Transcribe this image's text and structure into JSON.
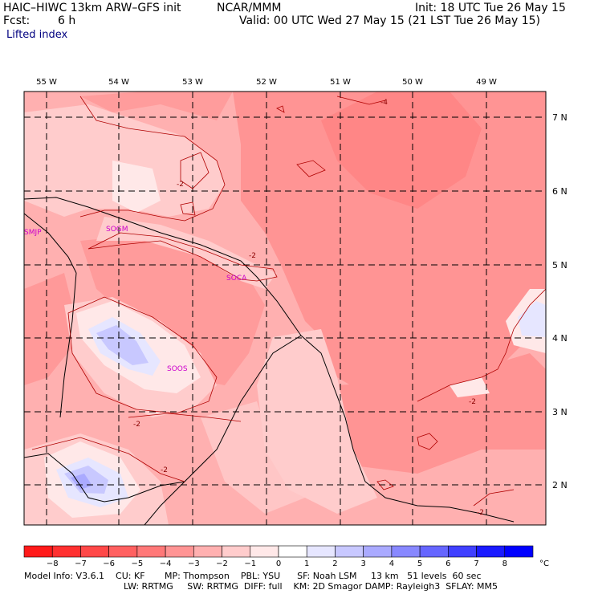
{
  "header": {
    "model": "HAIC–HIWC 13km ARW–GFS init",
    "org": "NCAR/MMM",
    "init": "Init: 18 UTC Tue 26 May 15",
    "fcst_label": "Fcst:",
    "fcst_value": "6 h",
    "valid": "Valid: 00 UTC Wed 27 May 15 (21 LST Tue 26 May 15)",
    "field": "Lifted index"
  },
  "lon_labels": [
    "55 W",
    "54 W",
    "53 W",
    "52 W",
    "51 W",
    "50 W",
    "49 W"
  ],
  "lat_labels": [
    "7 N",
    "6 N",
    "5 N",
    "4 N",
    "3 N",
    "2 N"
  ],
  "stations": [
    "SMJP",
    "SOGM",
    "SOCA",
    "SOOS"
  ],
  "contour_labels": [
    "-4",
    "-2",
    "-2",
    "-2",
    "-2",
    "-2",
    "-2"
  ],
  "colorbar": {
    "ticks": [
      "−8",
      "−7",
      "−6",
      "−5",
      "−4",
      "−3",
      "−2",
      "−1",
      "0",
      "1",
      "2",
      "3",
      "4",
      "5",
      "6",
      "7",
      "8"
    ],
    "unit": "°C",
    "colors": [
      "#ff1a1a",
      "#ff3030",
      "#ff4848",
      "#ff6060",
      "#ff7878",
      "#ff9494",
      "#ffb0b0",
      "#ffcccc",
      "#ffe8e8",
      "#ffffff",
      "#e6e6ff",
      "#c8c8ff",
      "#aaaaff",
      "#8888ff",
      "#6666ff",
      "#4040ff",
      "#1a1aff",
      "#0000ff"
    ]
  },
  "footer": {
    "line1": "Model Info: V3.6.1    CU: KF       MP: Thompson    PBL: YSU      SF: Noah LSM     13 km   51 levels  60 sec",
    "line2": "LW: RRTMG     SW: RRTMG  DIFF: full    KM: 2D Smagor DAMP: Rayleigh3  SFLAY: MM5"
  }
}
